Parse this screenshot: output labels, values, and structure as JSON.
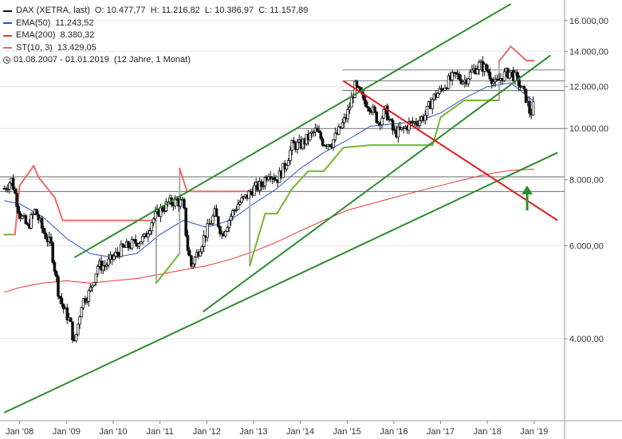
{
  "legend": {
    "title": "DAX (XETRA, last)",
    "ohlc": "O: 10.477,77  H: 11.216,82  L: 10.386,97  C: 11.157,89",
    "ema50_label": "EMA(50)",
    "ema50_value": "11.243,52",
    "ema200_label": "EMA(200)",
    "ema200_value": "8.380,32",
    "st_label": "ST(10, 3)",
    "st_value": "13.429,05",
    "range": "01.08.2007 - 01.01.2019",
    "duration": "(12 Jahre, 1 Monat)"
  },
  "colors": {
    "ema50": "#2a4fd6",
    "ema200": "#e53935",
    "supertrend_down": "#ef6a64",
    "supertrend_up": "#74b72e",
    "trendline_green": "#2e8b2e",
    "trendline_red": "#e21b1b",
    "arrow": "#2e8b2e",
    "candle": "#111111",
    "grid": "#666666"
  },
  "chart_data": {
    "type": "candlestick",
    "y_scale": "log",
    "ylim": [
      2800,
      17500
    ],
    "x_range": [
      "2007-08",
      "2019-01"
    ],
    "y_ticks": [
      "4.000,00",
      "6.000,00",
      "8.000,00",
      "10.000,00",
      "12.000,00",
      "14.000,00",
      "16.000,00"
    ],
    "y_tick_values": [
      4000,
      6000,
      8000,
      10000,
      12000,
      14000,
      16000
    ],
    "x_ticks": [
      "Jan '08",
      "Jan '09",
      "Jan '10",
      "Jan '11",
      "Jan '12",
      "Jan '13",
      "Jan '14",
      "Jan '15",
      "Jan '16",
      "Jan '17",
      "Jan '18",
      "Jan '19"
    ],
    "x_tick_times": [
      2008.0,
      2009.0,
      2010.0,
      2011.0,
      2012.0,
      2013.0,
      2014.0,
      2015.0,
      2016.0,
      2017.0,
      2018.0,
      2019.0
    ],
    "price_close": [
      [
        2007.67,
        7700
      ],
      [
        2007.83,
        8000
      ],
      [
        2008.0,
        6900
      ],
      [
        2008.17,
        6500
      ],
      [
        2008.33,
        7000
      ],
      [
        2008.5,
        6400
      ],
      [
        2008.67,
        6000
      ],
      [
        2008.83,
        4900
      ],
      [
        2008.92,
        4600
      ],
      [
        2009.08,
        4300
      ],
      [
        2009.17,
        3900
      ],
      [
        2009.33,
        4700
      ],
      [
        2009.5,
        4900
      ],
      [
        2009.67,
        5500
      ],
      [
        2009.83,
        5500
      ],
      [
        2010.0,
        5700
      ],
      [
        2010.17,
        5900
      ],
      [
        2010.33,
        6000
      ],
      [
        2010.5,
        6100
      ],
      [
        2010.67,
        6200
      ],
      [
        2010.83,
        6700
      ],
      [
        2011.0,
        7000
      ],
      [
        2011.17,
        7200
      ],
      [
        2011.33,
        7300
      ],
      [
        2011.5,
        7200
      ],
      [
        2011.58,
        6000
      ],
      [
        2011.67,
        5500
      ],
      [
        2011.83,
        5900
      ],
      [
        2012.0,
        6400
      ],
      [
        2012.17,
        6900
      ],
      [
        2012.33,
        6300
      ],
      [
        2012.5,
        6800
      ],
      [
        2012.67,
        7200
      ],
      [
        2012.83,
        7400
      ],
      [
        2013.0,
        7700
      ],
      [
        2013.17,
        7800
      ],
      [
        2013.33,
        8300
      ],
      [
        2013.5,
        8000
      ],
      [
        2013.67,
        8500
      ],
      [
        2013.83,
        9300
      ],
      [
        2014.0,
        9300
      ],
      [
        2014.17,
        9600
      ],
      [
        2014.33,
        9900
      ],
      [
        2014.5,
        9400
      ],
      [
        2014.67,
        9400
      ],
      [
        2014.83,
        9900
      ],
      [
        2015.0,
        10600
      ],
      [
        2015.17,
        12000
      ],
      [
        2015.33,
        11400
      ],
      [
        2015.5,
        11000
      ],
      [
        2015.67,
        10300
      ],
      [
        2015.83,
        10800
      ],
      [
        2016.0,
        9800
      ],
      [
        2016.17,
        9900
      ],
      [
        2016.33,
        10200
      ],
      [
        2016.5,
        10300
      ],
      [
        2016.67,
        10600
      ],
      [
        2016.83,
        11400
      ],
      [
        2017.0,
        11800
      ],
      [
        2017.17,
        12300
      ],
      [
        2017.33,
        12600
      ],
      [
        2017.5,
        12300
      ],
      [
        2017.67,
        12800
      ],
      [
        2017.83,
        13200
      ],
      [
        2018.0,
        12900
      ],
      [
        2018.17,
        12100
      ],
      [
        2018.33,
        12600
      ],
      [
        2018.5,
        12800
      ],
      [
        2018.67,
        12200
      ],
      [
        2018.83,
        11400
      ],
      [
        2018.92,
        10600
      ],
      [
        2019.0,
        11158
      ]
    ],
    "ema50": [
      [
        2007.67,
        7300
      ],
      [
        2008.0,
        7200
      ],
      [
        2008.5,
        6800
      ],
      [
        2009.0,
        6200
      ],
      [
        2009.5,
        5800
      ],
      [
        2010.0,
        5700
      ],
      [
        2010.5,
        5800
      ],
      [
        2011.0,
        6300
      ],
      [
        2011.5,
        6700
      ],
      [
        2012.0,
        6500
      ],
      [
        2012.5,
        6700
      ],
      [
        2013.0,
        7200
      ],
      [
        2013.5,
        7700
      ],
      [
        2014.0,
        8400
      ],
      [
        2014.5,
        9000
      ],
      [
        2015.0,
        9500
      ],
      [
        2015.5,
        10100
      ],
      [
        2016.0,
        10200
      ],
      [
        2016.5,
        10300
      ],
      [
        2017.0,
        10700
      ],
      [
        2017.5,
        11400
      ],
      [
        2018.0,
        12000
      ],
      [
        2018.5,
        12200
      ],
      [
        2019.0,
        11244
      ]
    ],
    "ema200": [
      [
        2007.67,
        4900
      ],
      [
        2008.0,
        5000
      ],
      [
        2008.5,
        5100
      ],
      [
        2009.0,
        5150
      ],
      [
        2009.5,
        5100
      ],
      [
        2010.0,
        5150
      ],
      [
        2010.5,
        5200
      ],
      [
        2011.0,
        5300
      ],
      [
        2011.5,
        5400
      ],
      [
        2012.0,
        5500
      ],
      [
        2012.5,
        5650
      ],
      [
        2013.0,
        5850
      ],
      [
        2013.5,
        6100
      ],
      [
        2014.0,
        6400
      ],
      [
        2014.5,
        6700
      ],
      [
        2015.0,
        7000
      ],
      [
        2015.5,
        7200
      ],
      [
        2016.0,
        7400
      ],
      [
        2016.5,
        7600
      ],
      [
        2017.0,
        7800
      ],
      [
        2017.5,
        8000
      ],
      [
        2018.0,
        8200
      ],
      [
        2018.5,
        8330
      ],
      [
        2019.0,
        8380
      ]
    ],
    "supertrend": [
      [
        2007.67,
        6300,
        "up"
      ],
      [
        2007.9,
        6300,
        "up"
      ],
      [
        2007.9,
        6300,
        "down"
      ],
      [
        2008.0,
        7800,
        "down"
      ],
      [
        2008.3,
        8500,
        "down"
      ],
      [
        2008.4,
        8100,
        "down"
      ],
      [
        2008.75,
        7400,
        "down"
      ],
      [
        2008.92,
        6700,
        "down"
      ],
      [
        2010.92,
        6700,
        "down"
      ],
      [
        2010.92,
        5100,
        "up"
      ],
      [
        2011.42,
        5800,
        "up"
      ],
      [
        2011.42,
        8400,
        "down"
      ],
      [
        2011.58,
        7600,
        "down"
      ],
      [
        2012.92,
        7600,
        "down"
      ],
      [
        2012.92,
        5500,
        "up"
      ],
      [
        2013.25,
        6900,
        "up"
      ],
      [
        2013.5,
        6900,
        "up"
      ],
      [
        2013.83,
        7700,
        "up"
      ],
      [
        2014.17,
        8300,
        "up"
      ],
      [
        2014.5,
        8300,
        "up"
      ],
      [
        2014.92,
        9200,
        "up"
      ],
      [
        2015.5,
        9300,
        "up"
      ],
      [
        2016.83,
        9300,
        "up"
      ],
      [
        2017.0,
        10500,
        "up"
      ],
      [
        2017.5,
        11300,
        "up"
      ],
      [
        2018.25,
        11300,
        "up"
      ],
      [
        2018.25,
        13400,
        "down"
      ],
      [
        2018.5,
        14300,
        "down"
      ],
      [
        2018.83,
        13450,
        "down"
      ],
      [
        2019.0,
        13429,
        "down"
      ]
    ],
    "trendlines": [
      {
        "kind": "green",
        "from": [
          2009.17,
          5700
        ],
        "to": [
          2018.5,
          17200
        ]
      },
      {
        "kind": "green",
        "from": [
          2011.92,
          4500
        ],
        "to": [
          2019.35,
          13750
        ]
      },
      {
        "kind": "green",
        "from": [
          2007.67,
          2900
        ],
        "to": [
          2019.5,
          9000
        ]
      },
      {
        "kind": "red",
        "from": [
          2014.92,
          12300
        ],
        "to": [
          2019.5,
          6700
        ]
      }
    ],
    "horizontal_levels": [
      12900,
      12300,
      11800,
      10000,
      8100,
      7600
    ],
    "arrow": {
      "t": 2018.85,
      "y_from": 7000,
      "y_to": 7800
    }
  }
}
